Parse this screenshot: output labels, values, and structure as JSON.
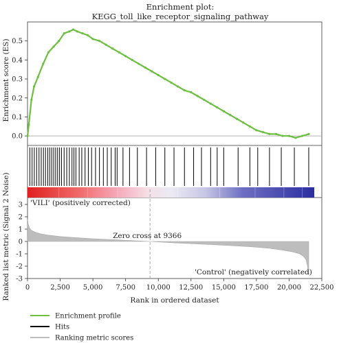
{
  "chart_data": {
    "type": "line",
    "title": "Enrichment plot:",
    "subtitle": "KEGG_toll_like_receptor_signaling_pathway",
    "xlabel": "Rank in ordered dataset",
    "xlim": [
      0,
      22500
    ],
    "x_ticks": [
      "0",
      "2,500",
      "5,000",
      "7,500",
      "10,000",
      "12,500",
      "15,000",
      "17,500",
      "20,000",
      "22,500"
    ],
    "x_tick_values": [
      0,
      2500,
      5000,
      7500,
      10000,
      12500,
      15000,
      17500,
      20000,
      22500
    ],
    "es_panel": {
      "ylabel": "Enrichment score (ES)",
      "ylim": [
        -0.05,
        0.6
      ],
      "y_ticks": [
        "0.0",
        "0.1",
        "0.2",
        "0.3",
        "0.4",
        "0.5"
      ],
      "y_tick_values": [
        0,
        0.1,
        0.2,
        0.3,
        0.4,
        0.5
      ],
      "series": [
        {
          "name": "Enrichment profile",
          "color": "#6cbf3f",
          "x": [
            0,
            100,
            300,
            500,
            800,
            1200,
            1600,
            2000,
            2400,
            2800,
            3200,
            3500,
            3800,
            4200,
            4600,
            5000,
            5500,
            6000,
            6500,
            7000,
            7500,
            8000,
            8500,
            9000,
            9500,
            10000,
            10500,
            11000,
            11500,
            12000,
            12500,
            13000,
            13500,
            14000,
            14500,
            15000,
            15500,
            16000,
            16500,
            17000,
            17500,
            18000,
            18500,
            19000,
            19500,
            20000,
            20500,
            21000,
            21500
          ],
          "y": [
            0.0,
            0.06,
            0.19,
            0.26,
            0.31,
            0.38,
            0.44,
            0.47,
            0.5,
            0.54,
            0.55,
            0.56,
            0.55,
            0.54,
            0.53,
            0.51,
            0.5,
            0.48,
            0.46,
            0.44,
            0.42,
            0.4,
            0.38,
            0.36,
            0.34,
            0.32,
            0.3,
            0.28,
            0.26,
            0.24,
            0.23,
            0.21,
            0.19,
            0.17,
            0.15,
            0.13,
            0.11,
            0.09,
            0.07,
            0.05,
            0.03,
            0.02,
            0.01,
            0.01,
            0.0,
            0.0,
            -0.01,
            0.0,
            0.01
          ]
        }
      ]
    },
    "hits_panel": {
      "name": "Hits",
      "color": "#000000",
      "positions": [
        180,
        350,
        520,
        700,
        880,
        1050,
        1220,
        1380,
        1550,
        1700,
        1850,
        2000,
        2150,
        2300,
        2450,
        2600,
        2800,
        3000,
        3200,
        3400,
        3550,
        3700,
        3950,
        4150,
        4400,
        4650,
        4900,
        5200,
        5500,
        5800,
        6100,
        6400,
        6700,
        6850,
        7300,
        7800,
        8400,
        9100,
        9800,
        10500,
        11200,
        12000,
        12700,
        13300,
        14000,
        14500,
        15000,
        16100,
        17000,
        17600,
        18500,
        19400,
        20400,
        21500
      ]
    },
    "metric_panel": {
      "name": "Ranking metric scores",
      "color": "#bdbdbd",
      "ylabel": "Ranked list metric (Signal 2 Noise)",
      "ylim": [
        -3,
        3
      ],
      "y_ticks": [
        "3",
        "2",
        "1",
        "0",
        "-1",
        "-2",
        "-3"
      ],
      "y_tick_values": [
        3,
        2,
        1,
        0,
        -1,
        -2,
        -3
      ],
      "x": [
        0,
        50,
        150,
        300,
        600,
        1000,
        1500,
        2500,
        3500,
        5000,
        7000,
        9366,
        11000,
        13000,
        15000,
        17000,
        18500,
        19500,
        20300,
        20800,
        21100,
        21300,
        21400,
        21500
      ],
      "y": [
        1.8,
        1.4,
        1.1,
        0.9,
        0.75,
        0.62,
        0.52,
        0.4,
        0.32,
        0.22,
        0.12,
        0.0,
        -0.1,
        -0.2,
        -0.3,
        -0.42,
        -0.55,
        -0.7,
        -0.85,
        -1.0,
        -1.2,
        -1.5,
        -2.0,
        -2.7
      ],
      "zero_cross": 9366,
      "zero_cross_label": "Zero cross at 9366",
      "positive_label": "'VILI' (positively corrected)",
      "negative_label": "'Control' (negatively correlated)",
      "positive_color": "#d32f2f",
      "negative_color": "#2b3a9c"
    },
    "legend": [
      {
        "name": "Enrichment profile",
        "color": "#6cbf3f"
      },
      {
        "name": "Hits",
        "color": "#000000"
      },
      {
        "name": "Ranking metric scores",
        "color": "#bdbdbd"
      }
    ],
    "legend_placement": "bottom-left"
  }
}
